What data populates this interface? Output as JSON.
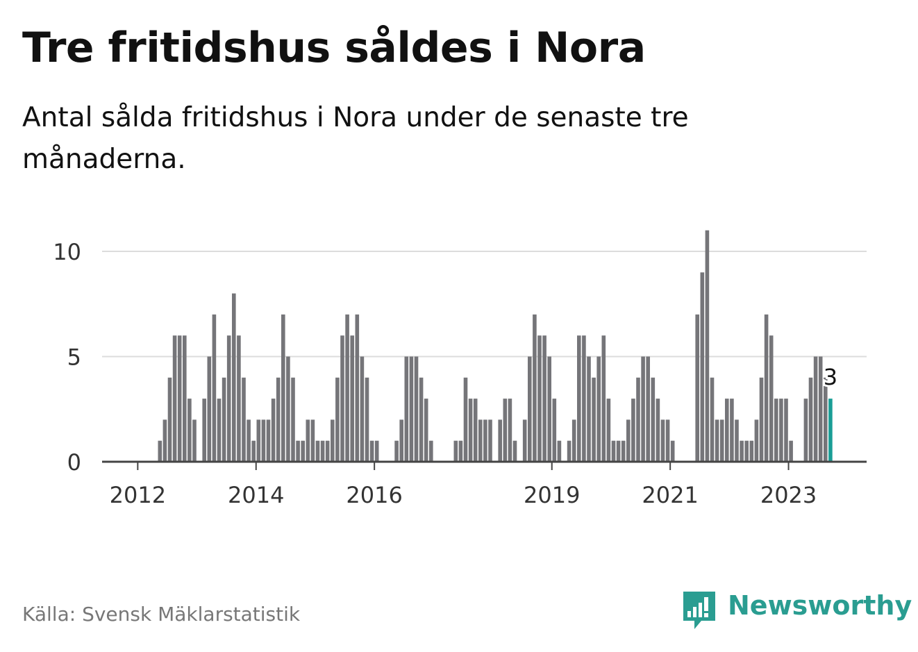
{
  "title": "Tre fritidshus såldes i Nora",
  "subtitle": "Antal sålda fritidshus i Nora under de senaste tre månaderna.",
  "source": "Källa: Svensk Mäklarstatistik",
  "brand": {
    "name": "Newsworthy",
    "icon": "newsworthy-chart-icon",
    "color": "#2a9d91"
  },
  "chart_data": {
    "type": "bar",
    "title": "",
    "xlabel": "",
    "ylabel": "",
    "ylim": [
      0,
      11
    ],
    "grid": true,
    "y_ticks": [
      "0",
      "5",
      "10"
    ],
    "x_ticks": [
      {
        "label": "2012",
        "at": 7
      },
      {
        "label": "2014",
        "at": 31
      },
      {
        "label": "2016",
        "at": 55
      },
      {
        "label": "2019",
        "at": 91
      },
      {
        "label": "2021",
        "at": 115
      },
      {
        "label": "2023",
        "at": 139
      }
    ],
    "bar_color": "#757579",
    "highlight_color": "#1a9e96",
    "highlight_label": "3",
    "values": [
      0,
      0,
      0,
      0,
      0,
      0,
      0,
      0,
      0,
      0,
      0,
      1,
      2,
      4,
      6,
      6,
      6,
      3,
      2,
      0,
      3,
      5,
      7,
      3,
      4,
      6,
      8,
      6,
      4,
      2,
      1,
      2,
      2,
      2,
      3,
      4,
      7,
      5,
      4,
      1,
      1,
      2,
      2,
      1,
      1,
      1,
      2,
      4,
      6,
      7,
      6,
      7,
      5,
      4,
      1,
      1,
      0,
      0,
      0,
      1,
      2,
      5,
      5,
      5,
      4,
      3,
      1,
      0,
      0,
      0,
      0,
      1,
      1,
      4,
      3,
      3,
      2,
      2,
      2,
      0,
      2,
      3,
      3,
      1,
      0,
      2,
      5,
      7,
      6,
      6,
      5,
      3,
      1,
      0,
      1,
      2,
      6,
      6,
      5,
      4,
      5,
      6,
      3,
      1,
      1,
      1,
      2,
      3,
      4,
      5,
      5,
      4,
      3,
      2,
      2,
      1,
      0,
      0,
      0,
      0,
      7,
      9,
      11,
      4,
      2,
      2,
      3,
      3,
      2,
      1,
      1,
      1,
      2,
      4,
      7,
      6,
      3,
      3,
      3,
      1,
      0,
      0,
      3,
      4,
      5,
      5,
      4,
      3
    ]
  }
}
